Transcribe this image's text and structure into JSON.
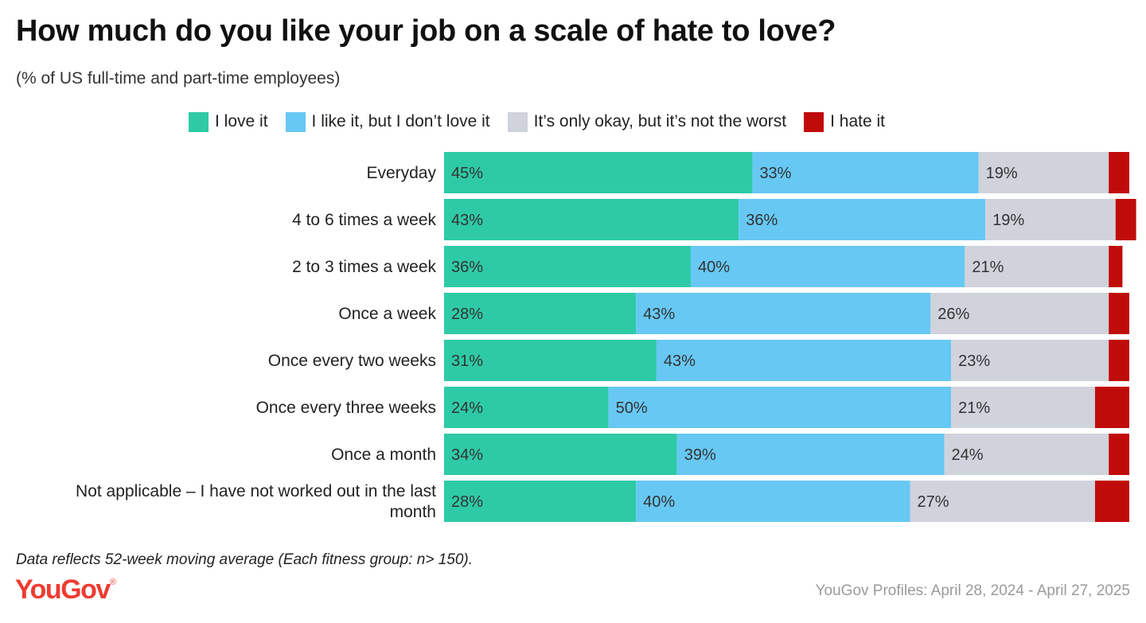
{
  "title": "How much do you like your job on a scale of hate to love?",
  "subtitle": "(% of US full-time and part-time employees)",
  "footnote": "Data reflects 52-week moving average (Each fitness group: n> 150).",
  "logo": {
    "text": "YouGov",
    "mark": "®"
  },
  "source": "YouGov Profiles: April 28, 2024 - April 27, 2025",
  "legend": [
    {
      "label": "I love it",
      "color": "#2ecaa6"
    },
    {
      "label": "I like it, but I don’t love it",
      "color": "#67c8f4"
    },
    {
      "label": "It’s only okay, but it’s not the worst",
      "color": "#d0d3dc"
    },
    {
      "label": "I hate it",
      "color": "#c00b0b"
    }
  ],
  "chart_data": {
    "type": "bar",
    "orientation": "horizontal",
    "stacked": true,
    "xlim": [
      0,
      100
    ],
    "categories": [
      "Everyday",
      "4 to 6 times a week",
      "2 to 3 times a week",
      "Once a week",
      "Once every two weeks",
      "Once every three weeks",
      "Once a month",
      "Not applicable – I have not worked out in the last month"
    ],
    "series": [
      {
        "name": "I love it",
        "color": "#2ecaa6",
        "values": [
          45,
          43,
          36,
          28,
          31,
          24,
          34,
          28
        ]
      },
      {
        "name": "I like it, but I don’t love it",
        "color": "#67c8f4",
        "values": [
          33,
          36,
          40,
          43,
          43,
          50,
          39,
          40
        ]
      },
      {
        "name": "It’s only okay, but it’s not the worst",
        "color": "#d0d3dc",
        "values": [
          19,
          19,
          21,
          26,
          23,
          21,
          24,
          27
        ]
      },
      {
        "name": "I hate it",
        "color": "#c00b0b",
        "values": [
          3,
          3,
          2,
          3,
          3,
          5,
          3,
          5
        ]
      }
    ],
    "data_labels": [
      [
        "45%",
        "43%",
        "36%",
        "28%",
        "31%",
        "24%",
        "34%",
        "28%"
      ],
      [
        "33%",
        "36%",
        "40%",
        "43%",
        "43%",
        "50%",
        "39%",
        "40%"
      ],
      [
        "19%",
        "19%",
        "21%",
        "26%",
        "23%",
        "21%",
        "24%",
        "27%"
      ]
    ],
    "category_label_lines": [
      [
        "Everyday"
      ],
      [
        "4 to 6 times a week"
      ],
      [
        "2 to 3 times a week"
      ],
      [
        "Once a week"
      ],
      [
        "Once every two weeks"
      ],
      [
        "Once every three weeks"
      ],
      [
        "Once a month"
      ],
      [
        "Not applicable – I have not worked out in the last",
        "month"
      ]
    ],
    "legend_position": "top",
    "grid": false
  }
}
